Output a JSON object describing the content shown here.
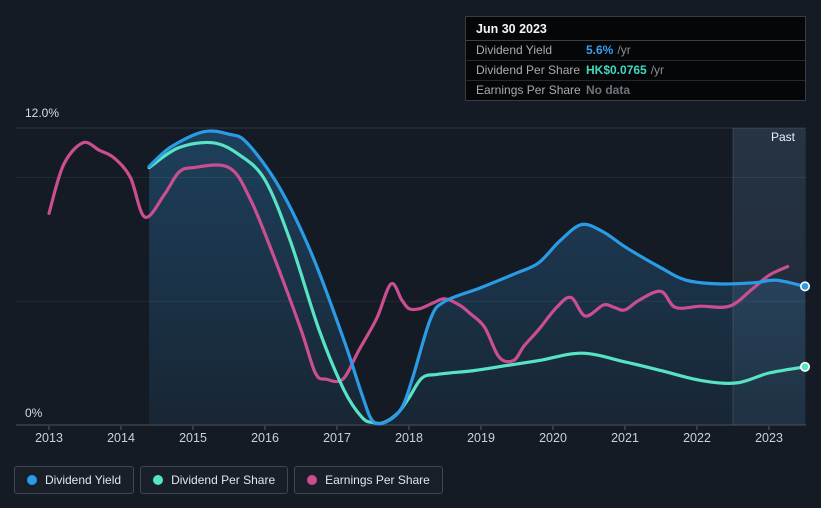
{
  "tooltip": {
    "date": "Jun 30 2023",
    "rows": [
      {
        "label": "Dividend Yield",
        "value": "5.6%",
        "suffix": "/yr",
        "value_color": "#36A0EC"
      },
      {
        "label": "Dividend Per Share",
        "value": "HK$0.0765",
        "suffix": "/yr",
        "value_color": "#43D9C0"
      },
      {
        "label": "Earnings Per Share",
        "value": "No data",
        "suffix": "",
        "value_color": "#6E747B"
      }
    ]
  },
  "legend": {
    "items": [
      {
        "label": "Dividend Yield",
        "color": "#2B9BE5"
      },
      {
        "label": "Dividend Per Share",
        "color": "#58E3C5"
      },
      {
        "label": "Earnings Per Share",
        "color": "#CB4E90"
      }
    ]
  },
  "chart_data": {
    "type": "line",
    "x_labels": [
      "2013",
      "2014",
      "2015",
      "2016",
      "2017",
      "2018",
      "2019",
      "2020",
      "2021",
      "2022",
      "2023"
    ],
    "y_axis": {
      "top_label": "12.0%",
      "bottom_label": "0%",
      "min": 0,
      "max": 12,
      "unit": "%"
    },
    "gridlines_pct": [
      12,
      10,
      5,
      0
    ],
    "grid": true,
    "legend_position": "bottom",
    "past_region": {
      "label": "Past",
      "start": 2022.5,
      "end": 2023.51
    },
    "series": [
      {
        "name": "Earnings Per Share",
        "color": "#CB4E90",
        "end_marker": false,
        "area": false,
        "points": [
          [
            2013.0,
            8.55
          ],
          [
            2013.2,
            10.5
          ],
          [
            2013.47,
            11.4
          ],
          [
            2013.7,
            11.1
          ],
          [
            2013.9,
            10.8
          ],
          [
            2014.13,
            10.0
          ],
          [
            2014.33,
            8.4
          ],
          [
            2014.6,
            9.3
          ],
          [
            2014.8,
            10.2
          ],
          [
            2015.0,
            10.4
          ],
          [
            2015.5,
            10.4
          ],
          [
            2015.8,
            9.1
          ],
          [
            2016.15,
            6.6
          ],
          [
            2016.5,
            3.85
          ],
          [
            2016.7,
            2.1
          ],
          [
            2016.85,
            1.85
          ],
          [
            2017.08,
            1.85
          ],
          [
            2017.3,
            3.0
          ],
          [
            2017.55,
            4.3
          ],
          [
            2017.75,
            5.7
          ],
          [
            2017.9,
            5.05
          ],
          [
            2018.0,
            4.7
          ],
          [
            2018.15,
            4.7
          ],
          [
            2018.35,
            4.95
          ],
          [
            2018.5,
            5.1
          ],
          [
            2018.7,
            4.85
          ],
          [
            2018.85,
            4.5
          ],
          [
            2019.05,
            3.95
          ],
          [
            2019.25,
            2.75
          ],
          [
            2019.45,
            2.6
          ],
          [
            2019.6,
            3.2
          ],
          [
            2019.8,
            3.85
          ],
          [
            2020.05,
            4.75
          ],
          [
            2020.25,
            5.15
          ],
          [
            2020.45,
            4.4
          ],
          [
            2020.7,
            4.85
          ],
          [
            2020.85,
            4.75
          ],
          [
            2021.0,
            4.65
          ],
          [
            2021.2,
            5.05
          ],
          [
            2021.5,
            5.4
          ],
          [
            2021.7,
            4.75
          ],
          [
            2022.05,
            4.8
          ],
          [
            2022.45,
            4.8
          ],
          [
            2022.75,
            5.45
          ],
          [
            2023.0,
            6.05
          ],
          [
            2023.26,
            6.4
          ]
        ]
      },
      {
        "name": "Dividend Per Share",
        "color": "#58E3C5",
        "end_marker": true,
        "area": false,
        "points": [
          [
            2014.39,
            10.4
          ],
          [
            2014.8,
            11.2
          ],
          [
            2015.28,
            11.4
          ],
          [
            2015.65,
            10.9
          ],
          [
            2016.0,
            9.9
          ],
          [
            2016.35,
            7.45
          ],
          [
            2016.75,
            3.85
          ],
          [
            2017.1,
            1.4
          ],
          [
            2017.35,
            0.3
          ],
          [
            2017.5,
            0.1
          ],
          [
            2017.65,
            0.1
          ],
          [
            2017.85,
            0.5
          ],
          [
            2018.0,
            1.1
          ],
          [
            2018.18,
            1.9
          ],
          [
            2018.4,
            2.05
          ],
          [
            2018.9,
            2.2
          ],
          [
            2019.35,
            2.4
          ],
          [
            2019.8,
            2.6
          ],
          [
            2020.4,
            2.9
          ],
          [
            2021.0,
            2.55
          ],
          [
            2021.5,
            2.2
          ],
          [
            2022.05,
            1.8
          ],
          [
            2022.55,
            1.7
          ],
          [
            2023.0,
            2.1
          ],
          [
            2023.5,
            2.35
          ]
        ]
      },
      {
        "name": "Dividend Yield",
        "color": "#2B9BE5",
        "end_marker": true,
        "area": true,
        "points": [
          [
            2014.39,
            10.45
          ],
          [
            2014.7,
            11.25
          ],
          [
            2015.15,
            11.85
          ],
          [
            2015.5,
            11.75
          ],
          [
            2015.75,
            11.4
          ],
          [
            2016.2,
            9.6
          ],
          [
            2016.65,
            6.9
          ],
          [
            2017.1,
            3.4
          ],
          [
            2017.35,
            1.2
          ],
          [
            2017.5,
            0.15
          ],
          [
            2017.7,
            0.15
          ],
          [
            2017.9,
            0.7
          ],
          [
            2018.05,
            1.9
          ],
          [
            2018.3,
            4.3
          ],
          [
            2018.5,
            5.0
          ],
          [
            2019.0,
            5.55
          ],
          [
            2019.5,
            6.15
          ],
          [
            2019.8,
            6.55
          ],
          [
            2020.1,
            7.45
          ],
          [
            2020.4,
            8.1
          ],
          [
            2020.7,
            7.8
          ],
          [
            2021.0,
            7.2
          ],
          [
            2021.5,
            6.35
          ],
          [
            2021.85,
            5.85
          ],
          [
            2022.3,
            5.7
          ],
          [
            2022.8,
            5.75
          ],
          [
            2023.1,
            5.85
          ],
          [
            2023.5,
            5.6
          ]
        ]
      }
    ]
  }
}
